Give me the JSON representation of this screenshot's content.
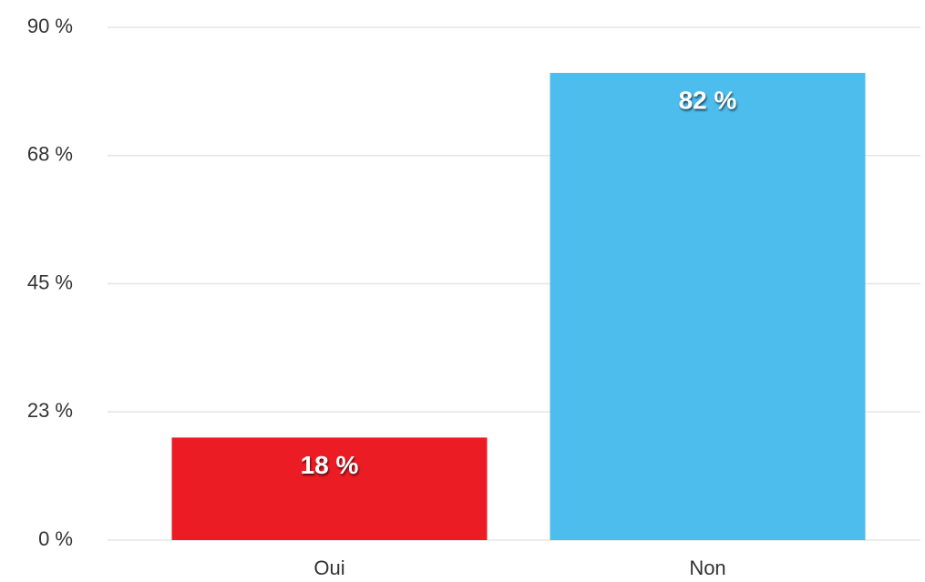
{
  "chart_data": {
    "type": "bar",
    "categories": [
      "Oui",
      "Non"
    ],
    "values": [
      18,
      82
    ],
    "value_labels": [
      "18 %",
      "82 %"
    ],
    "colors": [
      "#ec1c24",
      "#4dbdee"
    ],
    "ylim": [
      0,
      90
    ],
    "yticks": [
      {
        "value": 0,
        "label": "0 %"
      },
      {
        "value": 22.5,
        "label": "23 %"
      },
      {
        "value": 45,
        "label": "45 %"
      },
      {
        "value": 67.5,
        "label": "68 %"
      },
      {
        "value": 90,
        "label": "90 %"
      }
    ],
    "grid": true
  }
}
